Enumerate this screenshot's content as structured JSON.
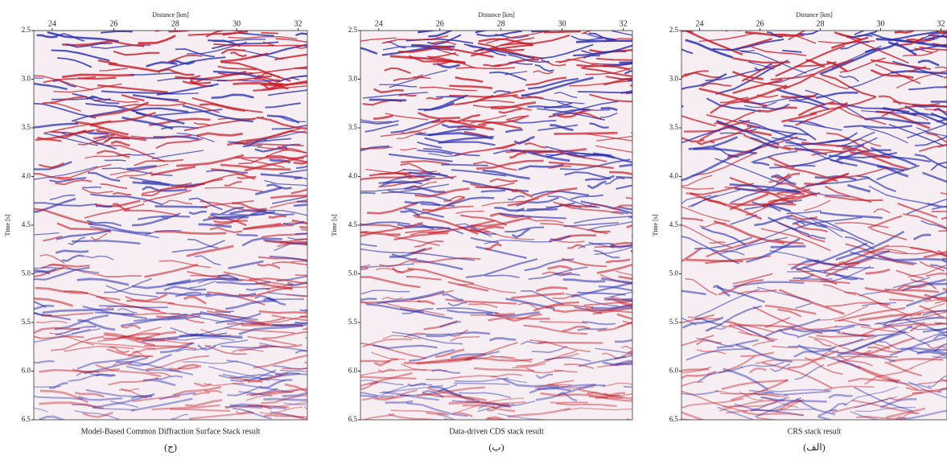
{
  "panels": [
    {
      "x_label": "Distance [km]",
      "y_label": "Time [s]",
      "xlim": [
        23.4,
        32.3
      ],
      "ylim": [
        2.5,
        6.5
      ],
      "xticks": [
        24,
        26,
        28,
        30,
        32
      ],
      "yticks": [
        {
          "value": 2.5,
          "label": "2.5"
        },
        {
          "value": 3,
          "label": "3.0"
        },
        {
          "value": 3.5,
          "label": "3.5"
        },
        {
          "value": 4,
          "label": "4.0"
        },
        {
          "value": 4.5,
          "label": "4.5"
        },
        {
          "value": 5,
          "label": "5.0"
        },
        {
          "value": 5.5,
          "label": "5.5"
        },
        {
          "value": 6,
          "label": "6.0"
        },
        {
          "value": 6.5,
          "label": "6.5"
        }
      ],
      "caption": "Model-Based Common Diffraction Surface Stack result",
      "tag": "(ج)"
    },
    {
      "x_label": "Distance [km]",
      "y_label": "Time [s]",
      "xlim": [
        23.4,
        32.3
      ],
      "ylim": [
        2.5,
        6.5
      ],
      "xticks": [
        24,
        26,
        28,
        30,
        32
      ],
      "yticks": [
        {
          "value": 2.5,
          "label": "2.5"
        },
        {
          "value": 3,
          "label": "3.0"
        },
        {
          "value": 3.5,
          "label": "3.5"
        },
        {
          "value": 4,
          "label": "4.0"
        },
        {
          "value": 4.5,
          "label": "4.5"
        },
        {
          "value": 5,
          "label": "5.0"
        },
        {
          "value": 5.5,
          "label": "5.5"
        },
        {
          "value": 6,
          "label": "6.0"
        },
        {
          "value": 6.5,
          "label": "6.5"
        }
      ],
      "caption": "Data-driven CDS stack result",
      "tag": "(ب)"
    },
    {
      "x_label": "Distance [km]",
      "y_label": "Time [s]",
      "xlim": [
        23.4,
        32.2
      ],
      "ylim": [
        2.5,
        6.5
      ],
      "xticks": [
        24,
        26,
        28,
        30,
        32
      ],
      "yticks": [
        {
          "value": 2.5,
          "label": "2.5"
        },
        {
          "value": 3,
          "label": "3.0"
        },
        {
          "value": 3.5,
          "label": "3.5"
        },
        {
          "value": 4,
          "label": "4.0"
        },
        {
          "value": 4.5,
          "label": "4.5"
        },
        {
          "value": 5,
          "label": "5.0"
        },
        {
          "value": 5.5,
          "label": "5.5"
        },
        {
          "value": 6,
          "label": "6.0"
        },
        {
          "value": 6.5,
          "label": "6.5"
        }
      ],
      "caption": "CRS stack result",
      "tag": "(الف)"
    }
  ]
}
